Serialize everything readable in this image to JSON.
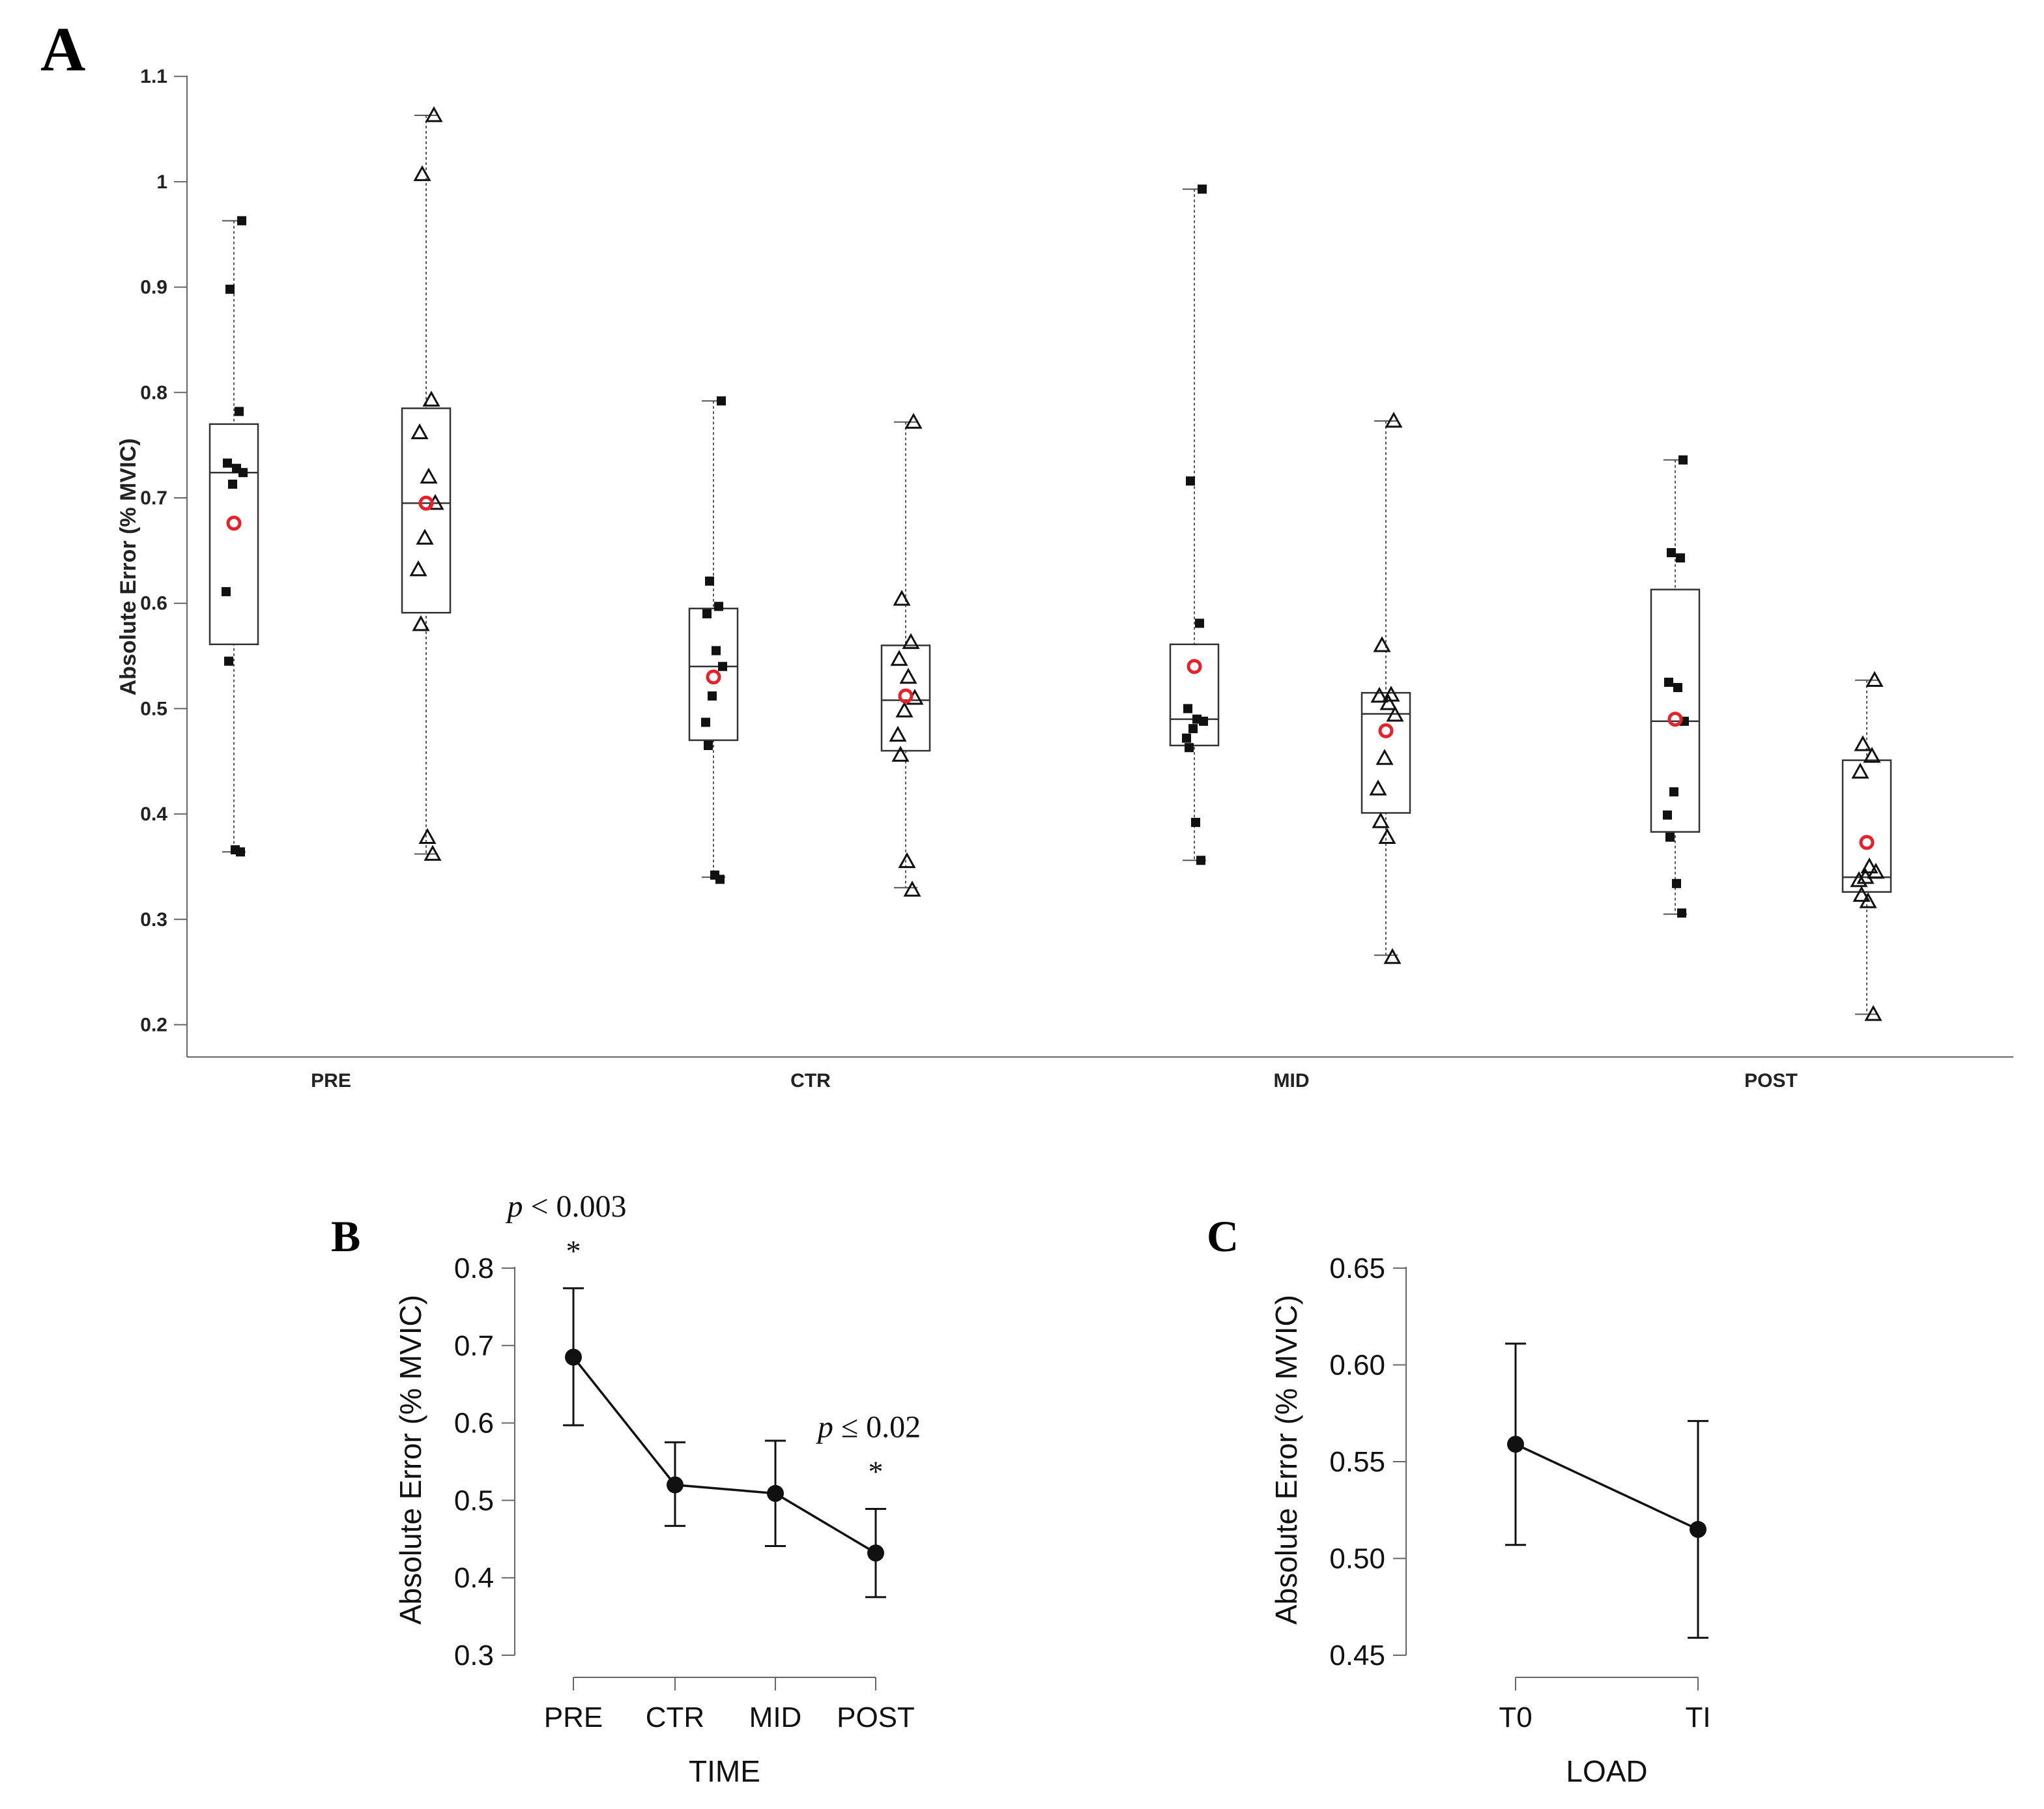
{
  "chart_data": [
    {
      "panel": "A",
      "type": "box",
      "title": "",
      "xlabel": "",
      "ylabel": "Absolute Error (% MVIC)",
      "ylim": [
        0.17,
        1.12
      ],
      "yticks": [
        "1.1",
        "1",
        "0.9",
        "0.8",
        "0.7",
        "0.6",
        "0.5",
        "0.4",
        "0.3",
        "0.2"
      ],
      "ytick_values": [
        1.1,
        1.0,
        0.9,
        0.8,
        0.7,
        0.6,
        0.5,
        0.4,
        0.3,
        0.2
      ],
      "categories": [
        "PRE",
        "CTR",
        "MID",
        "POST"
      ],
      "marker_colors": {
        "points": "#111111",
        "mean": "#e8202a",
        "box": "#222222"
      },
      "groups": [
        {
          "category": "PRE",
          "load": "T0",
          "marker": "square",
          "whisker_low": 0.364,
          "q1": 0.561,
          "median": 0.724,
          "q3": 0.77,
          "whisker_high": 0.963,
          "mean": 0.676,
          "points": [
            0.963,
            0.898,
            0.782,
            0.733,
            0.728,
            0.724,
            0.713,
            0.611,
            0.545,
            0.366,
            0.364
          ]
        },
        {
          "category": "PRE",
          "load": "TI",
          "marker": "triangle",
          "whisker_low": 0.362,
          "q1": 0.591,
          "median": 0.695,
          "q3": 0.785,
          "whisker_high": 1.063,
          "mean": 0.695,
          "points": [
            1.063,
            1.007,
            0.793,
            0.762,
            0.72,
            0.695,
            0.662,
            0.632,
            0.58,
            0.378,
            0.362
          ]
        },
        {
          "category": "CTR",
          "load": "T0",
          "marker": "square",
          "whisker_low": 0.34,
          "q1": 0.47,
          "median": 0.54,
          "q3": 0.595,
          "whisker_high": 0.792,
          "mean": 0.53,
          "points": [
            0.792,
            0.621,
            0.597,
            0.59,
            0.555,
            0.54,
            0.512,
            0.487,
            0.465,
            0.342,
            0.338
          ]
        },
        {
          "category": "CTR",
          "load": "TI",
          "marker": "triangle",
          "whisker_low": 0.33,
          "q1": 0.46,
          "median": 0.508,
          "q3": 0.56,
          "whisker_high": 0.772,
          "mean": 0.512,
          "points": [
            0.772,
            0.604,
            0.563,
            0.547,
            0.53,
            0.51,
            0.498,
            0.475,
            0.456,
            0.355,
            0.328
          ]
        },
        {
          "category": "MID",
          "load": "T0",
          "marker": "square",
          "whisker_low": 0.356,
          "q1": 0.465,
          "median": 0.49,
          "q3": 0.561,
          "whisker_high": 0.993,
          "mean": 0.54,
          "points": [
            0.993,
            0.716,
            0.581,
            0.5,
            0.49,
            0.488,
            0.481,
            0.472,
            0.463,
            0.392,
            0.356
          ]
        },
        {
          "category": "MID",
          "load": "TI",
          "marker": "triangle",
          "whisker_low": 0.266,
          "q1": 0.401,
          "median": 0.495,
          "q3": 0.515,
          "whisker_high": 0.773,
          "mean": 0.479,
          "points": [
            0.773,
            0.56,
            0.513,
            0.512,
            0.505,
            0.494,
            0.453,
            0.424,
            0.393,
            0.378,
            0.264
          ]
        },
        {
          "category": "POST",
          "load": "T0",
          "marker": "square",
          "whisker_low": 0.305,
          "q1": 0.383,
          "median": 0.488,
          "q3": 0.613,
          "whisker_high": 0.736,
          "mean": 0.49,
          "points": [
            0.736,
            0.648,
            0.643,
            0.525,
            0.52,
            0.488,
            0.421,
            0.399,
            0.378,
            0.334,
            0.306
          ]
        },
        {
          "category": "POST",
          "load": "TI",
          "marker": "triangle",
          "whisker_low": 0.21,
          "q1": 0.326,
          "median": 0.34,
          "q3": 0.451,
          "whisker_high": 0.527,
          "mean": 0.373,
          "points": [
            0.527,
            0.466,
            0.455,
            0.44,
            0.35,
            0.345,
            0.34,
            0.337,
            0.323,
            0.317,
            0.21
          ]
        }
      ]
    },
    {
      "panel": "B",
      "type": "line",
      "xlabel": "TIME",
      "ylabel": "Absolute Error (% MVIC)",
      "ylim": [
        0.3,
        0.8
      ],
      "yticks": [
        "0.8",
        "0.7",
        "0.6",
        "0.5",
        "0.4",
        "0.3"
      ],
      "ytick_values": [
        0.8,
        0.7,
        0.6,
        0.5,
        0.4,
        0.3
      ],
      "categories": [
        "PRE",
        "CTR",
        "MID",
        "POST"
      ],
      "values": [
        0.685,
        0.52,
        0.509,
        0.432
      ],
      "error_low": [
        0.597,
        0.467,
        0.441,
        0.375
      ],
      "error_high": [
        0.774,
        0.575,
        0.577,
        0.489
      ],
      "annotations": [
        {
          "category": "PRE",
          "italic": "p",
          "text": " < 0.003",
          "star": "*"
        },
        {
          "category": "POST",
          "italic": "p",
          "text": " ≤ 0.02",
          "star": "*"
        }
      ]
    },
    {
      "panel": "C",
      "type": "line",
      "xlabel": "LOAD",
      "ylabel": "Absolute Error (% MVIC)",
      "ylim": [
        0.45,
        0.65
      ],
      "yticks": [
        "0.65",
        "0.60",
        "0.55",
        "0.50",
        "0.45"
      ],
      "ytick_values": [
        0.65,
        0.6,
        0.55,
        0.5,
        0.45
      ],
      "categories": [
        "T0",
        "TI"
      ],
      "values": [
        0.559,
        0.515
      ],
      "error_low": [
        0.507,
        0.459
      ],
      "error_high": [
        0.611,
        0.571
      ]
    }
  ],
  "panel_labels": {
    "a": "A",
    "b": "B",
    "c": "C"
  }
}
